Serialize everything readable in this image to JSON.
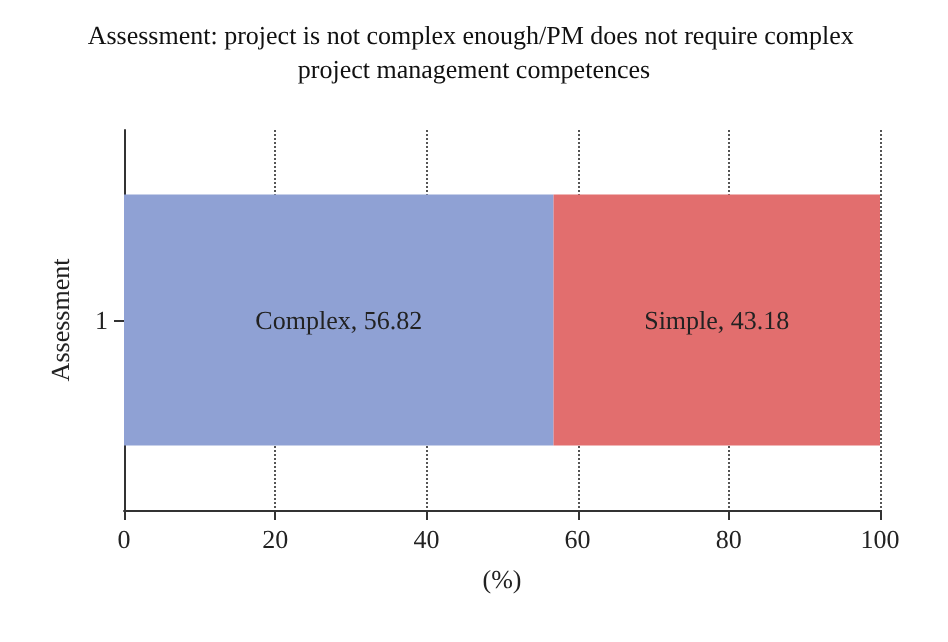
{
  "chart_data": {
    "type": "bar",
    "orientation": "horizontal",
    "stacked": true,
    "title": "Assessment: project is not complex enough/PM does not require complex project management competences",
    "xlabel": "(%)",
    "ylabel": "Assessment",
    "categories": [
      "1"
    ],
    "series": [
      {
        "color": "#8fa1d4",
        "values": [
          56.82
        ],
        "value_labels": [
          "Complex, 56.82"
        ]
      },
      {
        "color": "#e26e6e",
        "values": [
          43.18
        ],
        "value_labels": [
          "Simple, 43.18"
        ]
      }
    ],
    "xlim": [
      0,
      100
    ],
    "xticks": [
      0,
      20,
      40,
      60,
      80,
      100
    ],
    "grid": "x"
  }
}
